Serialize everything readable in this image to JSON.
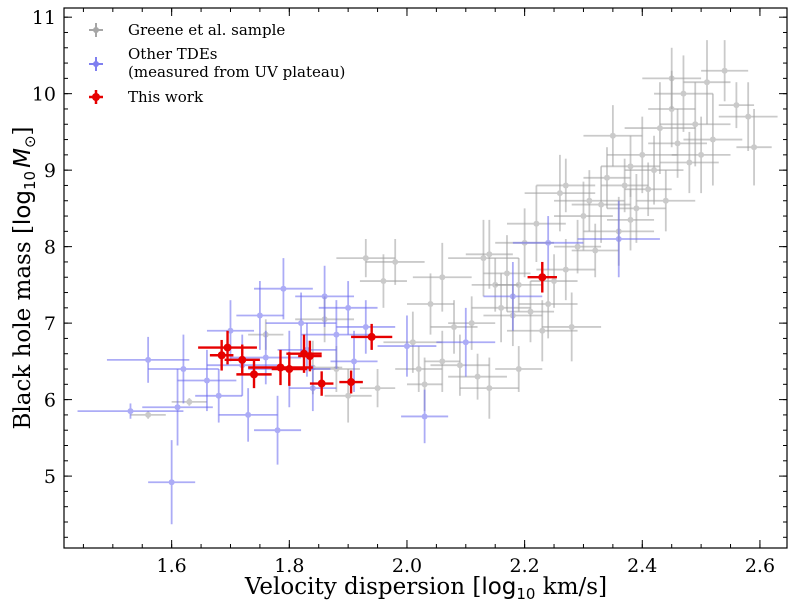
{
  "chart_data": {
    "type": "scatter",
    "xlabel_text": "Velocity dispersion [",
    "xlabel_math": "log",
    "xlabel_sub": "10",
    "xlabel_unit": " km/s]",
    "ylabel_text": "Black hole mass [",
    "ylabel_math": "log",
    "ylabel_sub": "10",
    "ylabel_var": "M",
    "ylabel_sym": "⊙",
    "ylabel_close": "]",
    "xlim": [
      1.417,
      2.646
    ],
    "ylim": [
      4.06,
      11.12
    ],
    "xticks": [
      1.6,
      1.8,
      2.0,
      2.2,
      2.4,
      2.6
    ],
    "xtick_labels": [
      "1.6",
      "1.8",
      "2.0",
      "2.2",
      "2.4",
      "2.6"
    ],
    "yticks": [
      5,
      6,
      7,
      8,
      9,
      10,
      11
    ],
    "ytick_labels": [
      "5",
      "6",
      "7",
      "8",
      "9",
      "10",
      "11"
    ],
    "legend": [
      {
        "label": "Greene et al. sample",
        "color": "#a6a6a6"
      },
      {
        "label": "Other TDEs",
        "label2": "(measured from UV plateau)",
        "color": "#8080f0"
      },
      {
        "label": "This work",
        "color": "#e60000"
      }
    ],
    "series": [
      {
        "name": "Greene et al. sample",
        "color": "#a0a0a0",
        "points": [
          [
            1.56,
            5.8,
            0.03,
            0.05
          ],
          [
            1.63,
            5.97,
            0.03,
            0.05
          ],
          [
            1.84,
            6.42,
            0.05,
            0.35
          ],
          [
            1.76,
            6.85,
            0.03,
            0.2
          ],
          [
            1.86,
            7.05,
            0.05,
            0.3
          ],
          [
            1.88,
            6.4,
            0.04,
            0.3
          ],
          [
            1.9,
            6.05,
            0.04,
            0.35
          ],
          [
            1.95,
            6.15,
            0.03,
            0.25
          ],
          [
            1.93,
            7.85,
            0.05,
            0.25
          ],
          [
            1.98,
            7.8,
            0.05,
            0.3
          ],
          [
            1.96,
            7.55,
            0.04,
            0.35
          ],
          [
            2.01,
            6.75,
            0.05,
            0.4
          ],
          [
            2.02,
            6.4,
            0.04,
            0.3
          ],
          [
            2.03,
            6.2,
            0.03,
            0.35
          ],
          [
            2.04,
            7.25,
            0.04,
            0.4
          ],
          [
            2.06,
            7.6,
            0.05,
            0.45
          ],
          [
            2.08,
            6.95,
            0.04,
            0.35
          ],
          [
            2.09,
            6.45,
            0.05,
            0.4
          ],
          [
            2.11,
            7.0,
            0.04,
            0.35
          ],
          [
            2.12,
            6.3,
            0.05,
            0.3
          ],
          [
            2.13,
            7.85,
            0.06,
            0.5
          ],
          [
            2.14,
            6.15,
            0.05,
            0.4
          ],
          [
            2.15,
            7.5,
            0.04,
            0.35
          ],
          [
            2.16,
            7.2,
            0.05,
            0.45
          ],
          [
            2.17,
            7.65,
            0.04,
            0.5
          ],
          [
            2.18,
            7.1,
            0.05,
            0.4
          ],
          [
            2.19,
            7.5,
            0.04,
            0.35
          ],
          [
            2.2,
            8.05,
            0.05,
            0.45
          ],
          [
            2.21,
            7.15,
            0.04,
            0.4
          ],
          [
            2.22,
            8.3,
            0.05,
            0.5
          ],
          [
            2.23,
            6.9,
            0.06,
            0.4
          ],
          [
            2.24,
            7.25,
            0.05,
            0.45
          ],
          [
            2.25,
            7.55,
            0.04,
            0.35
          ],
          [
            2.26,
            8.7,
            0.06,
            0.5
          ],
          [
            2.27,
            7.7,
            0.05,
            0.4
          ],
          [
            2.28,
            6.95,
            0.05,
            0.45
          ],
          [
            2.29,
            8.0,
            0.04,
            0.35
          ],
          [
            2.3,
            8.4,
            0.05,
            0.45
          ],
          [
            2.31,
            8.6,
            0.06,
            0.4
          ],
          [
            2.32,
            7.95,
            0.04,
            0.35
          ],
          [
            2.33,
            8.55,
            0.05,
            0.5
          ],
          [
            2.34,
            8.9,
            0.04,
            0.4
          ],
          [
            2.35,
            9.45,
            0.05,
            0.4
          ],
          [
            2.36,
            8.2,
            0.06,
            0.45
          ],
          [
            2.37,
            8.8,
            0.04,
            0.35
          ],
          [
            2.38,
            9.05,
            0.05,
            0.4
          ],
          [
            2.39,
            8.5,
            0.05,
            0.45
          ],
          [
            2.4,
            9.2,
            0.06,
            0.5
          ],
          [
            2.41,
            8.75,
            0.04,
            0.35
          ],
          [
            2.42,
            9.0,
            0.05,
            0.45
          ],
          [
            2.43,
            9.55,
            0.06,
            0.6
          ],
          [
            2.44,
            8.6,
            0.05,
            0.4
          ],
          [
            2.45,
            9.8,
            0.04,
            0.5
          ],
          [
            2.46,
            9.35,
            0.05,
            0.45
          ],
          [
            2.47,
            10.0,
            0.05,
            0.5
          ],
          [
            2.48,
            9.1,
            0.05,
            0.4
          ],
          [
            2.49,
            9.6,
            0.06,
            0.55
          ],
          [
            2.5,
            9.2,
            0.05,
            0.5
          ],
          [
            2.51,
            10.15,
            0.04,
            0.55
          ],
          [
            2.52,
            9.4,
            0.05,
            0.6
          ],
          [
            2.54,
            10.3,
            0.04,
            0.4
          ],
          [
            2.56,
            9.85,
            0.03,
            0.3
          ],
          [
            2.58,
            9.7,
            0.05,
            0.45
          ],
          [
            2.59,
            9.3,
            0.03,
            0.5
          ],
          [
            2.45,
            10.2,
            0.05,
            0.4
          ],
          [
            2.38,
            8.35,
            0.04,
            0.4
          ],
          [
            2.27,
            8.8,
            0.05,
            0.35
          ],
          [
            2.14,
            7.9,
            0.04,
            0.45
          ],
          [
            2.06,
            6.5,
            0.03,
            0.4
          ],
          [
            2.19,
            6.4,
            0.04,
            0.3
          ]
        ]
      },
      {
        "name": "Other TDEs",
        "color": "#6a6af0",
        "points": [
          [
            1.53,
            5.85,
            0.09,
            0.1
          ],
          [
            1.56,
            6.52,
            0.07,
            0.3
          ],
          [
            1.6,
            4.92,
            0.04,
            0.55
          ],
          [
            1.61,
            5.9,
            0.06,
            0.5
          ],
          [
            1.62,
            6.4,
            0.06,
            0.45
          ],
          [
            1.66,
            6.25,
            0.05,
            0.4
          ],
          [
            1.68,
            6.05,
            0.04,
            0.35
          ],
          [
            1.7,
            6.9,
            0.04,
            0.4
          ],
          [
            1.72,
            6.45,
            0.06,
            0.4
          ],
          [
            1.73,
            5.8,
            0.05,
            0.35
          ],
          [
            1.75,
            7.1,
            0.04,
            0.45
          ],
          [
            1.76,
            6.55,
            0.06,
            0.35
          ],
          [
            1.78,
            5.6,
            0.04,
            0.45
          ],
          [
            1.79,
            7.45,
            0.05,
            0.4
          ],
          [
            1.8,
            6.4,
            0.07,
            0.5
          ],
          [
            1.82,
            7.0,
            0.06,
            0.4
          ],
          [
            1.83,
            6.65,
            0.05,
            0.35
          ],
          [
            1.84,
            6.15,
            0.04,
            0.3
          ],
          [
            1.86,
            7.35,
            0.05,
            0.4
          ],
          [
            1.88,
            6.85,
            0.06,
            0.45
          ],
          [
            1.9,
            7.2,
            0.05,
            0.35
          ],
          [
            1.91,
            6.5,
            0.04,
            0.4
          ],
          [
            1.93,
            6.95,
            0.05,
            0.35
          ],
          [
            2.0,
            6.7,
            0.05,
            0.4
          ],
          [
            2.03,
            5.78,
            0.04,
            0.35
          ],
          [
            2.1,
            6.75,
            0.05,
            0.45
          ],
          [
            2.18,
            7.35,
            0.05,
            0.45
          ],
          [
            2.24,
            8.05,
            0.06,
            0.35
          ],
          [
            2.36,
            8.1,
            0.07,
            0.5
          ]
        ]
      },
      {
        "name": "This work",
        "color": "#e60000",
        "points": [
          [
            1.685,
            6.58,
            0.02,
            0.2
          ],
          [
            1.695,
            6.68,
            0.05,
            0.22
          ],
          [
            1.72,
            6.52,
            0.03,
            0.2
          ],
          [
            1.74,
            6.33,
            0.03,
            0.18
          ],
          [
            1.785,
            6.42,
            0.055,
            0.23
          ],
          [
            1.8,
            6.4,
            0.03,
            0.22
          ],
          [
            1.825,
            6.6,
            0.03,
            0.25
          ],
          [
            1.835,
            6.57,
            0.02,
            0.2
          ],
          [
            1.855,
            6.21,
            0.02,
            0.16
          ],
          [
            1.905,
            6.23,
            0.02,
            0.15
          ],
          [
            1.94,
            6.82,
            0.035,
            0.17
          ],
          [
            2.23,
            7.6,
            0.025,
            0.2
          ]
        ]
      }
    ]
  }
}
